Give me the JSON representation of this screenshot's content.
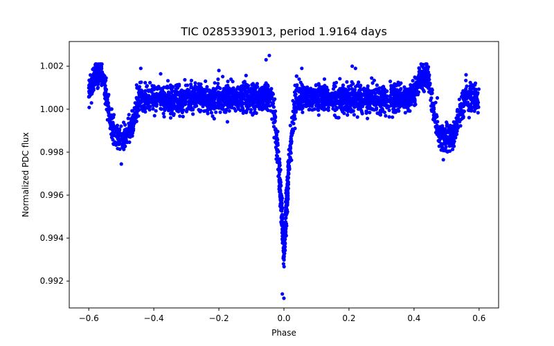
{
  "chart_data": {
    "type": "scatter",
    "title": "TIC 0285339013, period 1.9164 days",
    "xlabel": "Phase",
    "ylabel": "Normalized PDC flux",
    "xlim": [
      -0.66,
      0.66
    ],
    "ylim": [
      0.99075,
      1.00315
    ],
    "xticks": [
      -0.6,
      -0.4,
      -0.2,
      0.0,
      0.2,
      0.4,
      0.6
    ],
    "xtick_labels": [
      "−0.6",
      "−0.4",
      "−0.2",
      "0.0",
      "0.2",
      "0.4",
      "0.6"
    ],
    "yticks": [
      0.992,
      0.994,
      0.996,
      0.998,
      1.0,
      1.002
    ],
    "ytick_labels": [
      "0.992",
      "0.994",
      "0.996",
      "0.998",
      "1.000",
      "1.002"
    ],
    "marker_color": "#0000ff",
    "grid": false,
    "series": [
      {
        "name": "PDC flux",
        "light_curve": {
          "phase_range": [
            -0.6,
            0.6
          ],
          "baseline_flux": 1.0005,
          "scatter_sigma": 0.00032,
          "primary_eclipse": {
            "center_phase": 0.0,
            "min_flux": 0.9933,
            "half_width": 0.04,
            "lowest_points": [
              0.9912,
              0.9914
            ]
          },
          "secondary_eclipse": {
            "center_phases": [
              -0.5,
              0.5
            ],
            "min_flux": 0.99855,
            "half_width": 0.055
          },
          "pre_eclipse_brightening": {
            "peak_phases": [
              -0.57,
              0.43
            ],
            "peak_flux": 1.0016
          },
          "outliers": [
            {
              "x": -0.045,
              "y": 1.0025
            },
            {
              "x": -0.055,
              "y": 1.0023
            },
            {
              "x": 0.055,
              "y": 1.0019
            },
            {
              "x": 0.21,
              "y": 1.002
            },
            {
              "x": 0.22,
              "y": 1.0019
            },
            {
              "x": -0.44,
              "y": 1.0019
            },
            {
              "x": -0.2,
              "y": 1.0018
            },
            {
              "x": 0.56,
              "y": 1.0016
            },
            {
              "x": -0.5,
              "y": 0.99745
            },
            {
              "x": 0.49,
              "y": 0.99765
            }
          ]
        }
      }
    ]
  }
}
